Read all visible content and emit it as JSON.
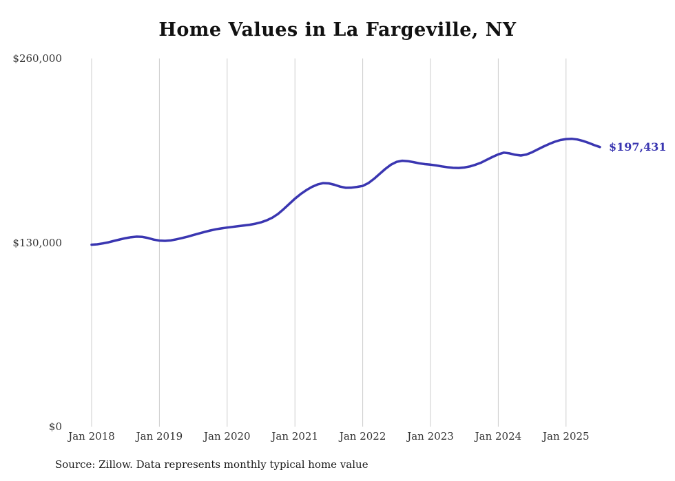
{
  "chart_data": {
    "type": "line",
    "title": "Home Values in La Fargeville, NY",
    "series_name": "Monthly typical home value",
    "line_color": "#3a36b1",
    "grid": "vertical-only",
    "ylim": [
      0,
      260000
    ],
    "y_ticks": [
      {
        "label": "$260,000",
        "value": 260000
      },
      {
        "label": "$130,000",
        "value": 130000
      },
      {
        "label": "$0",
        "value": 0
      }
    ],
    "x_ticks": [
      {
        "label": "Jan 2018",
        "month_index": 0
      },
      {
        "label": "Jan 2019",
        "month_index": 12
      },
      {
        "label": "Jan 2020",
        "month_index": 24
      },
      {
        "label": "Jan 2021",
        "month_index": 36
      },
      {
        "label": "Jan 2022",
        "month_index": 48
      },
      {
        "label": "Jan 2023",
        "month_index": 60
      },
      {
        "label": "Jan 2024",
        "month_index": 72
      },
      {
        "label": "Jan 2025",
        "month_index": 84
      }
    ],
    "x": [
      "2018-01",
      "2018-02",
      "2018-03",
      "2018-04",
      "2018-05",
      "2018-06",
      "2018-07",
      "2018-08",
      "2018-09",
      "2018-10",
      "2018-11",
      "2018-12",
      "2019-01",
      "2019-02",
      "2019-03",
      "2019-04",
      "2019-05",
      "2019-06",
      "2019-07",
      "2019-08",
      "2019-09",
      "2019-10",
      "2019-11",
      "2019-12",
      "2020-01",
      "2020-02",
      "2020-03",
      "2020-04",
      "2020-05",
      "2020-06",
      "2020-07",
      "2020-08",
      "2020-09",
      "2020-10",
      "2020-11",
      "2020-12",
      "2021-01",
      "2021-02",
      "2021-03",
      "2021-04",
      "2021-05",
      "2021-06",
      "2021-07",
      "2021-08",
      "2021-09",
      "2021-10",
      "2021-11",
      "2021-12",
      "2022-01",
      "2022-02",
      "2022-03",
      "2022-04",
      "2022-05",
      "2022-06",
      "2022-07",
      "2022-08",
      "2022-09",
      "2022-10",
      "2022-11",
      "2022-12",
      "2023-01",
      "2023-02",
      "2023-03",
      "2023-04",
      "2023-05",
      "2023-06",
      "2023-07",
      "2023-08",
      "2023-09",
      "2023-10",
      "2023-11",
      "2023-12",
      "2024-01",
      "2024-02",
      "2024-03",
      "2024-04",
      "2024-05",
      "2024-06",
      "2024-07",
      "2024-08",
      "2024-09",
      "2024-10",
      "2024-11",
      "2024-12",
      "2025-01",
      "2025-02",
      "2025-03",
      "2025-04",
      "2025-05",
      "2025-06",
      "2025-07"
    ],
    "values": [
      128500,
      128800,
      129400,
      130200,
      131200,
      132200,
      133100,
      133800,
      134200,
      134000,
      133200,
      132100,
      131400,
      131200,
      131500,
      132300,
      133200,
      134200,
      135300,
      136400,
      137500,
      138500,
      139400,
      140000,
      140600,
      141100,
      141600,
      142100,
      142600,
      143300,
      144300,
      145700,
      147600,
      150200,
      153600,
      157300,
      161000,
      164200,
      167000,
      169300,
      171000,
      172000,
      171800,
      170800,
      169500,
      168700,
      168800,
      169300,
      170000,
      172000,
      175000,
      178500,
      182000,
      185000,
      187000,
      187800,
      187500,
      186800,
      186000,
      185400,
      185000,
      184500,
      183800,
      183200,
      182800,
      182700,
      183000,
      183800,
      185000,
      186500,
      188500,
      190500,
      192300,
      193500,
      193000,
      192000,
      191500,
      192200,
      193800,
      195800,
      197800,
      199600,
      201200,
      202400,
      203100,
      203300,
      202800,
      201800,
      200400,
      198800,
      197431
    ],
    "end_label": "$197,431",
    "source_note": "Source: Zillow. Data represents monthly typical home value"
  }
}
